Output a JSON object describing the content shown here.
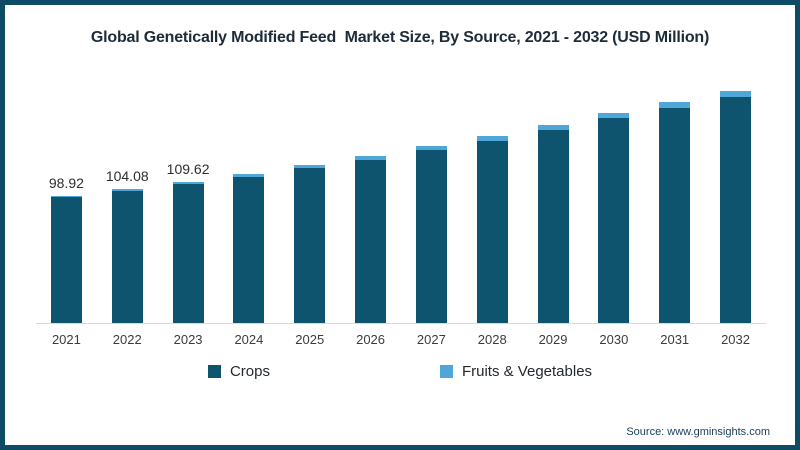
{
  "chart_data": {
    "type": "bar",
    "stacked": true,
    "title": "Global Genetically Modified Feed  Market Size, By Source, 2021 - 2032 (USD Million)",
    "categories": [
      "2021",
      "2022",
      "2023",
      "2024",
      "2025",
      "2026",
      "2027",
      "2028",
      "2029",
      "2030",
      "2031",
      "2032"
    ],
    "series": [
      {
        "name": "Crops",
        "color": "#0e546e",
        "values": [
          98.0,
          103.1,
          108.4,
          114.0,
          120.3,
          127.0,
          134.3,
          142.0,
          150.4,
          159.6,
          167.2,
          175.9
        ]
      },
      {
        "name": "Fruits & Vegetables",
        "color": "#4fa6d8",
        "values": [
          0.92,
          0.98,
          1.22,
          1.9,
          2.8,
          3.1,
          3.6,
          3.6,
          3.8,
          4.2,
          4.4,
          4.7
        ]
      }
    ],
    "totals": [
      98.92,
      104.08,
      109.62,
      115.9,
      123.1,
      130.1,
      137.9,
      145.6,
      154.2,
      163.8,
      171.6,
      180.6
    ],
    "data_labels": [
      "98.92",
      "104.08",
      "109.62",
      "",
      "",
      "",
      "",
      "",
      "",
      "",
      "",
      ""
    ],
    "ylim": [
      0,
      190
    ],
    "grid": false,
    "y_axis_shown": false,
    "legend_position": "bottom"
  },
  "legend": {
    "items": [
      {
        "label": "Crops",
        "color": "#0e546e"
      },
      {
        "label": "Fruits & Vegetables",
        "color": "#4fa6d8"
      }
    ]
  },
  "source": "Source: www.gminsights.com",
  "colors": {
    "frame_border": "#0d4c64",
    "axis_line": "#d9d9d9",
    "background": "#ffffff",
    "crops": "#0e546e",
    "fruits_vegetables": "#4fa6d8"
  }
}
